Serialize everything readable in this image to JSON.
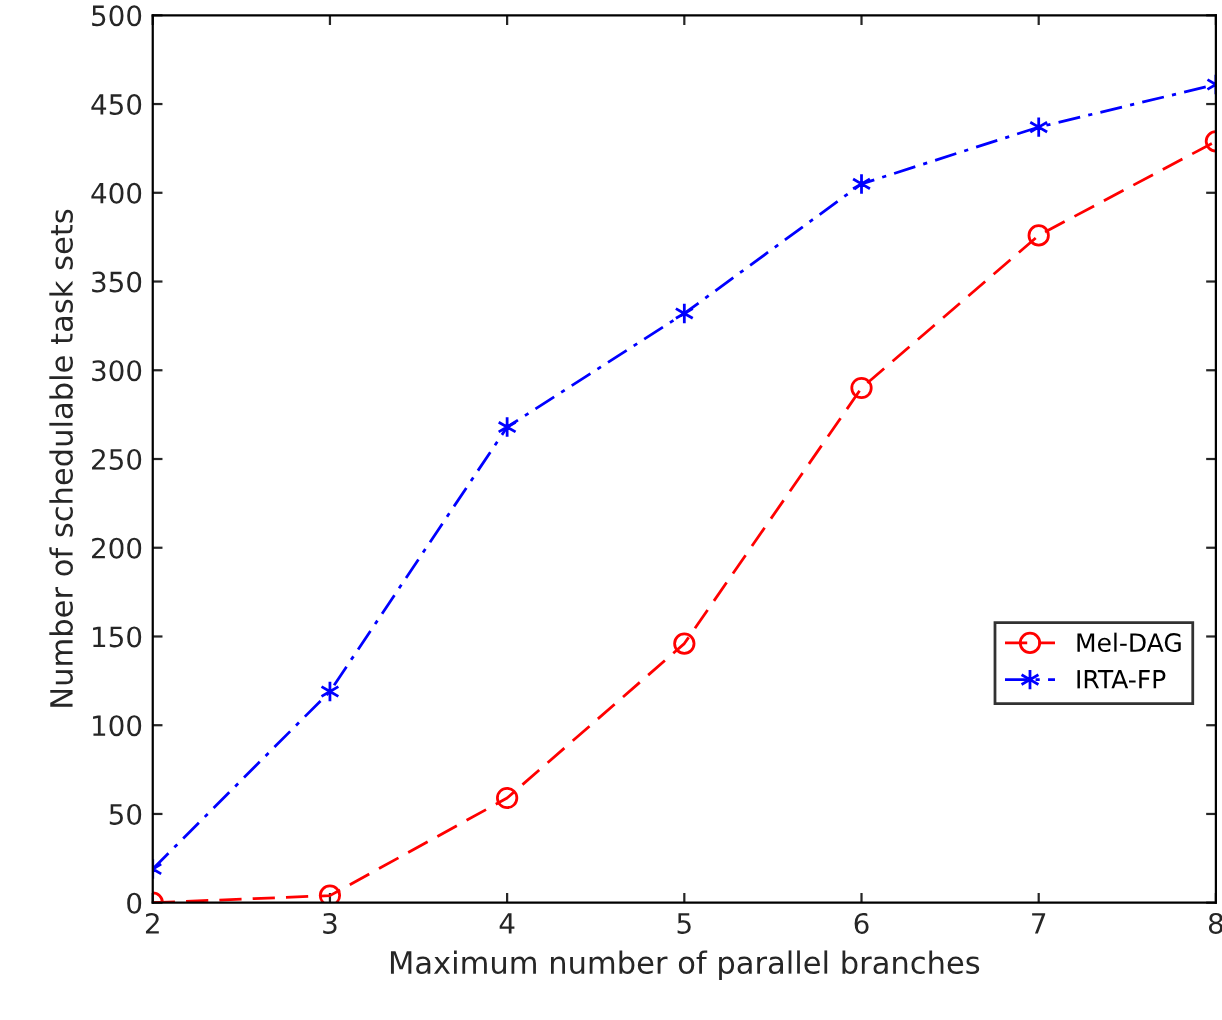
{
  "chart_data": {
    "type": "line",
    "xlabel": "Maximum number of parallel branches",
    "ylabel": "Number of schedulable task sets",
    "x": [
      2,
      3,
      4,
      5,
      6,
      7,
      8
    ],
    "series": [
      {
        "name": "Mel-DAG",
        "color": "#ff0000",
        "values": [
          0,
          4,
          59,
          146,
          290,
          376,
          429
        ],
        "marker": "circle",
        "line_style": "dashed"
      },
      {
        "name": "IRTA-FP",
        "color": "#0000ff",
        "values": [
          19,
          119,
          268,
          332,
          405,
          437,
          461
        ],
        "marker": "cross",
        "line_style": "dashdot"
      }
    ],
    "xlim": [
      2,
      8
    ],
    "xticks": [
      2,
      3,
      4,
      5,
      6,
      7,
      8
    ],
    "ylim": [
      0,
      500
    ],
    "yticks": [
      0,
      50,
      100,
      150,
      200,
      250,
      300,
      350,
      400,
      450,
      500
    ],
    "grid": false,
    "legend": "right"
  }
}
